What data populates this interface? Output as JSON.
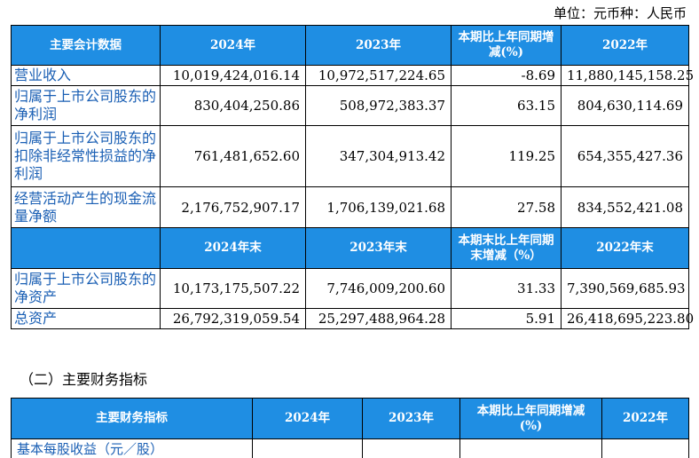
{
  "unit_label": "单位：元币种：人民币",
  "table1": {
    "headers": [
      "主要会计数据",
      "2024年",
      "2023年",
      "本期比上年同期增减(%)",
      "2022年"
    ],
    "rows_a": [
      {
        "label": "营业收入",
        "v2024": "10,019,424,016.14",
        "v2023": "10,972,517,224.65",
        "change": "-8.69",
        "v2022": "11,880,145,158.25"
      },
      {
        "label": "归属于上市公司股东的净利润",
        "v2024": "830,404,250.86",
        "v2023": "508,972,383.37",
        "change": "63.15",
        "v2022": "804,630,114.69"
      },
      {
        "label": "归属于上市公司股东的扣除非经常性损益的净利润",
        "v2024": "761,481,652.60",
        "v2023": "347,304,913.42",
        "change": "119.25",
        "v2022": "654,355,427.36"
      },
      {
        "label": "经营活动产生的现金流量净额",
        "v2024": "2,176,752,907.17",
        "v2023": "1,706,139,021.68",
        "change": "27.58",
        "v2022": "834,552,421.08"
      }
    ],
    "subheaders": [
      "",
      "2024年末",
      "2023年末",
      "本期末比上年同期末增减（%）",
      "2022年末"
    ],
    "rows_b": [
      {
        "label": "归属于上市公司股东的净资产",
        "v2024": "10,173,175,507.22",
        "v2023": "7,746,009,200.60",
        "change": "31.33",
        "v2022": "7,390,569,685.93"
      },
      {
        "label": "总资产",
        "v2024": "26,792,319,059.54",
        "v2023": "25,297,488,964.28",
        "change": "5.91",
        "v2022": "26,418,695,223.80"
      }
    ]
  },
  "section2_title": "（二）主要财务指标",
  "table2": {
    "headers": [
      "主要财务指标",
      "2024年",
      "2023年",
      "本期比上年同期增减(%)",
      "2022年"
    ],
    "partial_row_label": "基本每股收益（元／股）"
  }
}
